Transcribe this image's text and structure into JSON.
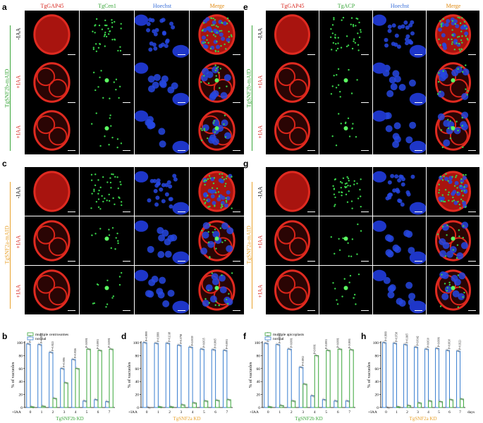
{
  "panels": {
    "a": {
      "letter": "a",
      "columns": [
        "TgGAP45",
        "TgCen1",
        "Hoechst",
        "Merge"
      ],
      "column_colors": [
        "#d7261e",
        "#3aa63a",
        "#3a6fd8",
        "#e08a10"
      ],
      "strain": "TgSNF2b-mAID",
      "strain_color": "#3aa63a",
      "rows": [
        "-IAA",
        "+IAA",
        "+IAA"
      ]
    },
    "c": {
      "letter": "c",
      "strain": "TgSNF2a-mAID",
      "strain_color": "#e8a22c",
      "rows": [
        "-IAA",
        "+IAA",
        "+IAA"
      ]
    },
    "e": {
      "letter": "e",
      "columns": [
        "TgGAP45",
        "TgACP",
        "Hoechst",
        "Merge"
      ],
      "column_colors": [
        "#d7261e",
        "#3aa63a",
        "#3a6fd8",
        "#e08a10"
      ],
      "strain": "TgSNF2b-mAID",
      "strain_color": "#3aa63a",
      "rows": [
        "-IAA",
        "+IAA",
        "+IAA"
      ]
    },
    "g": {
      "letter": "g",
      "strain": "TgSNF2a-mAID",
      "strain_color": "#e8a22c",
      "rows": [
        "-IAA",
        "+IAA",
        "+IAA"
      ]
    }
  },
  "colors": {
    "normal": "#3a7fd0",
    "multiple": "#3aa63a",
    "snf2b": "#3aa63a",
    "snf2a": "#e8a22c",
    "neg": "#000000",
    "pos": "#d7261e"
  },
  "chart_data": [
    {
      "panel": "b",
      "type": "bar",
      "title": "",
      "ylabel": "% of vacuoles",
      "xlabel": "TgSNF2b KD",
      "ylim": [
        0,
        100
      ],
      "yticks": [
        "0",
        "20",
        "40",
        "60",
        "80",
        "100"
      ],
      "x_prefix": "+IAA",
      "categories": [
        "0",
        "1",
        "2",
        "3",
        "4",
        "5",
        "6",
        "7"
      ],
      "legend": [
        "multiple centrosomes",
        "normal"
      ],
      "series": [
        {
          "name": "normal",
          "values": [
            98,
            97,
            85,
            60,
            74,
            10,
            12,
            9
          ]
        },
        {
          "name": "multiple centrosomes",
          "values": [
            1,
            2,
            14,
            38,
            60,
            90,
            88,
            90
          ]
        }
      ],
      "pvalues": [
        "P=0.9161",
        "P=0.0151",
        "P=0.0123",
        "P=0.0006",
        "P=0.0026",
        "P<0.0001",
        "P<0.0001",
        "P<0.0001"
      ]
    },
    {
      "panel": "d",
      "type": "bar",
      "title": "",
      "ylabel": "% of vacuoles",
      "xlabel": "TgSNF2a KD",
      "ylim": [
        0,
        100
      ],
      "yticks": [
        "0",
        "20",
        "40",
        "60",
        "80",
        "100"
      ],
      "x_prefix": "+IAA",
      "categories": [
        "0",
        "1",
        "2",
        "3",
        "4",
        "5",
        "6",
        "7"
      ],
      "series": [
        {
          "name": "normal",
          "values": [
            100,
            99,
            99,
            96,
            93,
            90,
            89,
            88
          ]
        },
        {
          "name": "multiple centrosomes",
          "values": [
            0,
            1,
            1,
            4,
            7,
            10,
            11,
            12
          ]
        }
      ],
      "pvalues": [
        "P=0.9999",
        "P=0.9999",
        "P=0.1318",
        "P=0.0758",
        "P=0.0039",
        "P=0.0035",
        "P=0.0065",
        "P=0.0001"
      ]
    },
    {
      "panel": "f",
      "type": "bar",
      "title": "",
      "ylabel": "% of vacuoles",
      "xlabel": "TgSNF2b KD",
      "ylim": [
        0,
        100
      ],
      "yticks": [
        "0",
        "20",
        "40",
        "60",
        "80",
        "100"
      ],
      "x_prefix": "+IAA",
      "categories": [
        "0",
        "1",
        "2",
        "3",
        "4",
        "5",
        "6",
        "7"
      ],
      "legend": [
        "multiple apicoplasts",
        "normal"
      ],
      "series": [
        {
          "name": "normal",
          "values": [
            99,
            97,
            90,
            62,
            18,
            12,
            10,
            10
          ]
        },
        {
          "name": "multiple apicoplasts",
          "values": [
            1,
            3,
            10,
            36,
            80,
            88,
            90,
            89
          ]
        }
      ],
      "pvalues": [
        "P=0.0012",
        "P=0.0011",
        "P<0.0001",
        "P=0.0002",
        "P<0.0001",
        "P<0.0001",
        "P<0.0001",
        "P<0.0001"
      ]
    },
    {
      "panel": "h",
      "type": "bar",
      "title": "",
      "ylabel": "% of vacuoles",
      "xlabel": "TgSNF2a KD",
      "x_unit": "days",
      "ylim": [
        0,
        100
      ],
      "yticks": [
        "0",
        "20",
        "40",
        "60",
        "80",
        "100"
      ],
      "x_prefix": "+IAA",
      "categories": [
        "0",
        "1",
        "2",
        "3",
        "4",
        "5",
        "6",
        "7"
      ],
      "series": [
        {
          "name": "normal",
          "values": [
            100,
            99,
            97,
            93,
            90,
            91,
            88,
            87
          ]
        },
        {
          "name": "multiple apicoplasts",
          "values": [
            0,
            1,
            3,
            7,
            10,
            9,
            12,
            13
          ]
        }
      ],
      "pvalues": [
        "P=0.9999",
        "P=0.9738",
        "P=0.1165",
        "P=0.0142",
        "P=0.0030",
        "P=0.0006",
        "P=0.0030",
        "P=0.0323"
      ]
    }
  ]
}
